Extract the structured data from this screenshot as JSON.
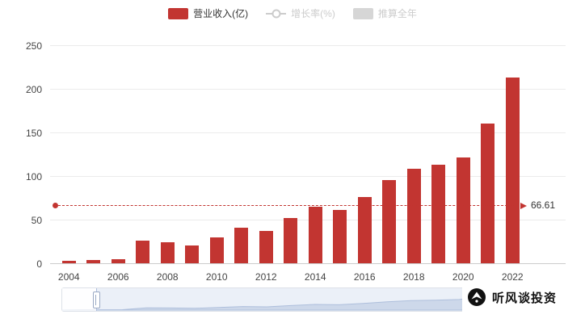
{
  "legend": {
    "items": [
      {
        "label": "营业收入(亿)",
        "marker": "bar",
        "color": "#c23531",
        "enabled": true
      },
      {
        "label": "增长率(%)",
        "marker": "line",
        "color": "#cccccc",
        "enabled": false
      },
      {
        "label": "推算全年",
        "marker": "bar",
        "color": "#d6d6d6",
        "enabled": false
      }
    ]
  },
  "chart_data": {
    "type": "bar",
    "title": "",
    "series_name": "营业收入(亿)",
    "categories": [
      "2004",
      "2005",
      "2006",
      "2007",
      "2008",
      "2009",
      "2010",
      "2011",
      "2012",
      "2013",
      "2014",
      "2015",
      "2016",
      "2017",
      "2018",
      "2019",
      "2020",
      "2021",
      "2022"
    ],
    "values": [
      3,
      4,
      5,
      26,
      24,
      20,
      30,
      41,
      37,
      52,
      65,
      61,
      76,
      95,
      108,
      113,
      121,
      160,
      213
    ],
    "bar_color": "#c23531",
    "ylim": [
      0,
      250
    ],
    "yticks": [
      0,
      50,
      100,
      150,
      200,
      250
    ],
    "x_label_step": 2,
    "grid": true,
    "legend_position": "top",
    "markline": {
      "value": 66.61,
      "label": "66.61",
      "color": "#c23531",
      "style": "dashed"
    }
  },
  "datazoom": {
    "present": true
  },
  "watermark": {
    "text": "听风谈投资"
  }
}
